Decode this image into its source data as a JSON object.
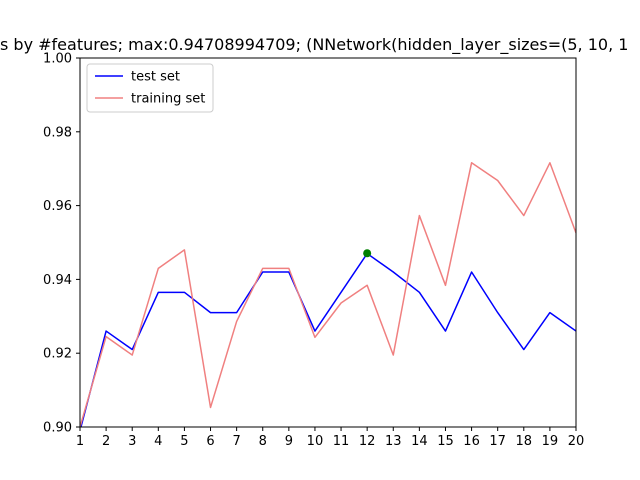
{
  "chart_data": {
    "type": "line",
    "title": "s by #features; max:0.94708994709; (NNetwork(hidden_layer_sizes=(5, 10, 1",
    "xlabel": "",
    "ylabel": "",
    "xlim": [
      1,
      20
    ],
    "ylim": [
      0.9,
      1.0
    ],
    "x_ticks": [
      1,
      2,
      3,
      4,
      5,
      6,
      7,
      8,
      9,
      10,
      11,
      12,
      13,
      14,
      15,
      16,
      17,
      18,
      19,
      20
    ],
    "x_tick_labels": [
      "1",
      "2",
      "3",
      "4",
      "5",
      "6",
      "7",
      "8",
      "9",
      "10",
      "11",
      "12",
      "13",
      "14",
      "15",
      "16",
      "17",
      "18",
      "19",
      "20"
    ],
    "y_ticks": [
      0.9,
      0.92,
      0.94,
      0.96,
      0.98,
      1.0
    ],
    "y_tick_labels": [
      "0.90",
      "0.92",
      "0.94",
      "0.96",
      "0.98",
      "1.00"
    ],
    "grid": false,
    "legend_position": "top-left",
    "x": [
      1,
      2,
      3,
      4,
      5,
      6,
      7,
      8,
      9,
      10,
      11,
      12,
      13,
      14,
      15,
      16,
      17,
      18,
      19,
      20
    ],
    "series": [
      {
        "name": "test set",
        "color": "#0000ff",
        "values": [
          0.899,
          0.926,
          0.921,
          0.9365,
          0.9365,
          0.931,
          0.931,
          0.942,
          0.942,
          0.926,
          0.9365,
          0.947,
          0.942,
          0.9365,
          0.926,
          0.942,
          0.931,
          0.921,
          0.931,
          0.926
        ]
      },
      {
        "name": "training set",
        "color": "#f08080",
        "values": [
          0.9,
          0.9245,
          0.9195,
          0.943,
          0.948,
          0.9053,
          0.9286,
          0.943,
          0.943,
          0.9243,
          0.9336,
          0.9384,
          0.9195,
          0.9573,
          0.9384,
          0.9716,
          0.9668,
          0.9573,
          0.9716,
          0.9526
        ]
      }
    ],
    "highlight_point": {
      "x": 12,
      "y": 0.94709,
      "color": "#008000"
    }
  }
}
